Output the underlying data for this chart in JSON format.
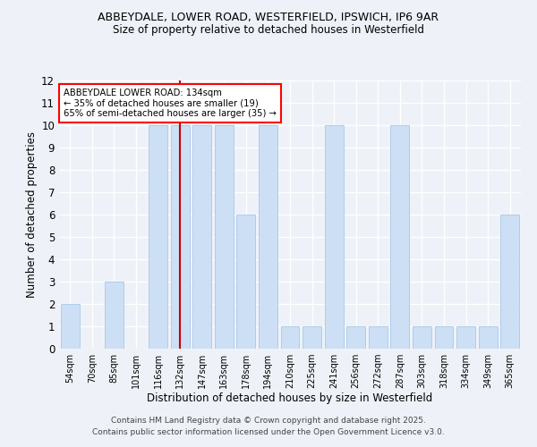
{
  "title_line1": "ABBEYDALE, LOWER ROAD, WESTERFIELD, IPSWICH, IP6 9AR",
  "title_line2": "Size of property relative to detached houses in Westerfield",
  "xlabel": "Distribution of detached houses by size in Westerfield",
  "ylabel": "Number of detached properties",
  "categories": [
    "54sqm",
    "70sqm",
    "85sqm",
    "101sqm",
    "116sqm",
    "132sqm",
    "147sqm",
    "163sqm",
    "178sqm",
    "194sqm",
    "210sqm",
    "225sqm",
    "241sqm",
    "256sqm",
    "272sqm",
    "287sqm",
    "303sqm",
    "318sqm",
    "334sqm",
    "349sqm",
    "365sqm"
  ],
  "values": [
    2,
    0,
    3,
    0,
    10,
    10,
    10,
    10,
    6,
    10,
    1,
    1,
    10,
    1,
    1,
    10,
    1,
    1,
    1,
    1,
    6
  ],
  "bar_color": "#ccdff5",
  "bar_edge_color": "#a8c8e8",
  "highlight_index": 5,
  "highlight_color": "#cc0000",
  "ylim": [
    0,
    12
  ],
  "yticks": [
    0,
    1,
    2,
    3,
    4,
    5,
    6,
    7,
    8,
    9,
    10,
    11,
    12
  ],
  "annotation_text": "ABBEYDALE LOWER ROAD: 134sqm\n← 35% of detached houses are smaller (19)\n65% of semi-detached houses are larger (35) →",
  "footer_line1": "Contains HM Land Registry data © Crown copyright and database right 2025.",
  "footer_line2": "Contains public sector information licensed under the Open Government Licence v3.0.",
  "bg_color": "#eef2f8"
}
